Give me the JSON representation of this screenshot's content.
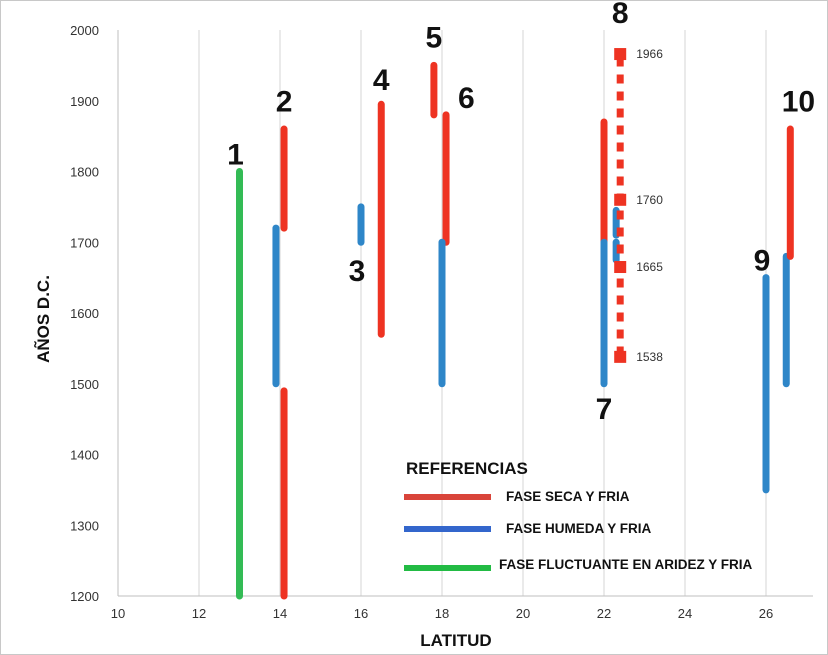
{
  "chart_data": {
    "type": "range",
    "xlabel": "LATITUD",
    "ylabel": "AÑOS D.C.",
    "xlim": [
      10,
      27
    ],
    "ylim": [
      1200,
      2000
    ],
    "xticks": [
      10,
      12,
      14,
      16,
      18,
      20,
      22,
      24,
      26
    ],
    "yticks": [
      1200,
      1300,
      1400,
      1500,
      1600,
      1700,
      1800,
      1900,
      2000
    ],
    "grid": "vertical",
    "colors": {
      "seca": "#ee3322",
      "humeda": "#2e86c8",
      "fluctuante": "#33bb55"
    },
    "legend": {
      "title": "REFERENCIAS",
      "placement": "bottom-right",
      "items": [
        {
          "key": "seca",
          "label": "FASE SECA Y FRIA"
        },
        {
          "key": "humeda",
          "label": "FASE HUMEDA Y FRIA"
        },
        {
          "key": "fluctuante",
          "label": "FASE FLUCTUANTE EN ARIDEZ Y FRIA"
        }
      ]
    },
    "segments": [
      {
        "x": 13.0,
        "y0": 1200,
        "y1": 1800,
        "phase": "fluctuante"
      },
      {
        "x": 14.1,
        "y0": 1720,
        "y1": 1860,
        "phase": "seca"
      },
      {
        "x": 14.1,
        "y0": 1200,
        "y1": 1490,
        "phase": "seca"
      },
      {
        "x": 13.9,
        "y0": 1500,
        "y1": 1720,
        "phase": "humeda"
      },
      {
        "x": 16.0,
        "y0": 1700,
        "y1": 1750,
        "phase": "humeda"
      },
      {
        "x": 16.5,
        "y0": 1570,
        "y1": 1895,
        "phase": "seca"
      },
      {
        "x": 17.8,
        "y0": 1880,
        "y1": 1950,
        "phase": "seca"
      },
      {
        "x": 18.1,
        "y0": 1700,
        "y1": 1880,
        "phase": "seca"
      },
      {
        "x": 18.0,
        "y0": 1500,
        "y1": 1700,
        "phase": "humeda"
      },
      {
        "x": 22.0,
        "y0": 1700,
        "y1": 1870,
        "phase": "seca"
      },
      {
        "x": 22.0,
        "y0": 1500,
        "y1": 1700,
        "phase": "humeda"
      },
      {
        "x": 22.3,
        "y0": 1710,
        "y1": 1745,
        "phase": "humeda"
      },
      {
        "x": 22.3,
        "y0": 1675,
        "y1": 1700,
        "phase": "humeda"
      },
      {
        "x": 22.4,
        "y0": 1540,
        "y1": 1960,
        "phase": "seca",
        "dashed": true
      },
      {
        "x": 26.0,
        "y0": 1350,
        "y1": 1650,
        "phase": "humeda"
      },
      {
        "x": 26.5,
        "y0": 1500,
        "y1": 1680,
        "phase": "humeda"
      },
      {
        "x": 26.6,
        "y0": 1680,
        "y1": 1860,
        "phase": "seca"
      }
    ],
    "markers": [
      {
        "x": 22.4,
        "y": 1966,
        "label": "1966"
      },
      {
        "x": 22.4,
        "y": 1760,
        "label": "1760"
      },
      {
        "x": 22.4,
        "y": 1665,
        "label": "1665"
      },
      {
        "x": 22.4,
        "y": 1538,
        "label": "1538"
      }
    ],
    "labels": [
      {
        "text": "1",
        "x": 12.9,
        "y": 1810
      },
      {
        "text": "2",
        "x": 14.1,
        "y": 1885
      },
      {
        "text": "3",
        "x": 15.9,
        "y": 1645
      },
      {
        "text": "4",
        "x": 16.5,
        "y": 1915
      },
      {
        "text": "5",
        "x": 17.8,
        "y": 1975
      },
      {
        "text": "6",
        "x": 18.6,
        "y": 1890
      },
      {
        "text": "7",
        "x": 22.0,
        "y": 1450
      },
      {
        "text": "8",
        "x": 22.4,
        "y": 2010
      },
      {
        "text": "9",
        "x": 25.9,
        "y": 1660
      },
      {
        "text": "10",
        "x": 26.8,
        "y": 1885
      }
    ]
  }
}
